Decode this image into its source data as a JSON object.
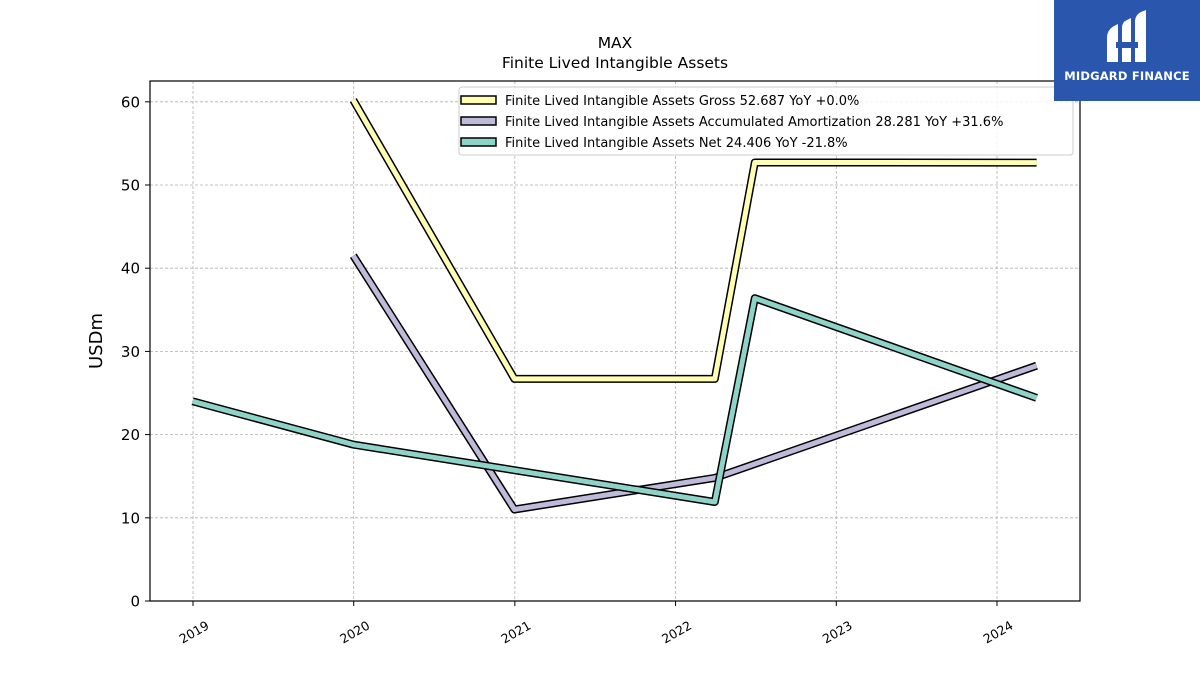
{
  "chart_data": {
    "type": "line",
    "title": "MAX",
    "subtitle": "Finite Lived Intangible Assets",
    "ylabel": "USDm",
    "xlabel": "",
    "ylim": [
      0,
      62.5
    ],
    "yticks": [
      0,
      10,
      20,
      30,
      40,
      50,
      60
    ],
    "xticks": [
      "2019",
      "2020",
      "2021",
      "2022",
      "2023",
      "2024"
    ],
    "grid": true,
    "legend_position": "top-right",
    "series": [
      {
        "name": "Finite Lived Intangible Assets Gross  52.687 YoY +0.0%",
        "color": "#ffffb3",
        "points": [
          {
            "x": "2019-12-31",
            "y": 60.2
          },
          {
            "x": "2020-12-31",
            "y": 26.7
          },
          {
            "x": "2022-03-31",
            "y": 26.7
          },
          {
            "x": "2022-06-30",
            "y": 52.7
          },
          {
            "x": "2024-03-31",
            "y": 52.687
          }
        ]
      },
      {
        "name": "Finite Lived Intangible Assets Accumulated Amortization  28.281 YoY +31.6%",
        "color": "#bebada",
        "points": [
          {
            "x": "2019-12-31",
            "y": 41.5
          },
          {
            "x": "2020-12-31",
            "y": 11.0
          },
          {
            "x": "2022-03-31",
            "y": 14.8
          },
          {
            "x": "2024-03-31",
            "y": 28.281
          }
        ]
      },
      {
        "name": "Finite Lived Intangible Assets Net  24.406 YoY -21.8%",
        "color": "#8dd3c7",
        "points": [
          {
            "x": "2018-12-31",
            "y": 24.0
          },
          {
            "x": "2019-12-31",
            "y": 18.8
          },
          {
            "x": "2022-03-31",
            "y": 11.9
          },
          {
            "x": "2022-06-30",
            "y": 36.4
          },
          {
            "x": "2024-03-31",
            "y": 24.406
          }
        ]
      }
    ]
  },
  "logo": {
    "text": "MIDGARD FINANCE",
    "icon": "midgard-mark-icon",
    "background": "#2a57ad"
  }
}
